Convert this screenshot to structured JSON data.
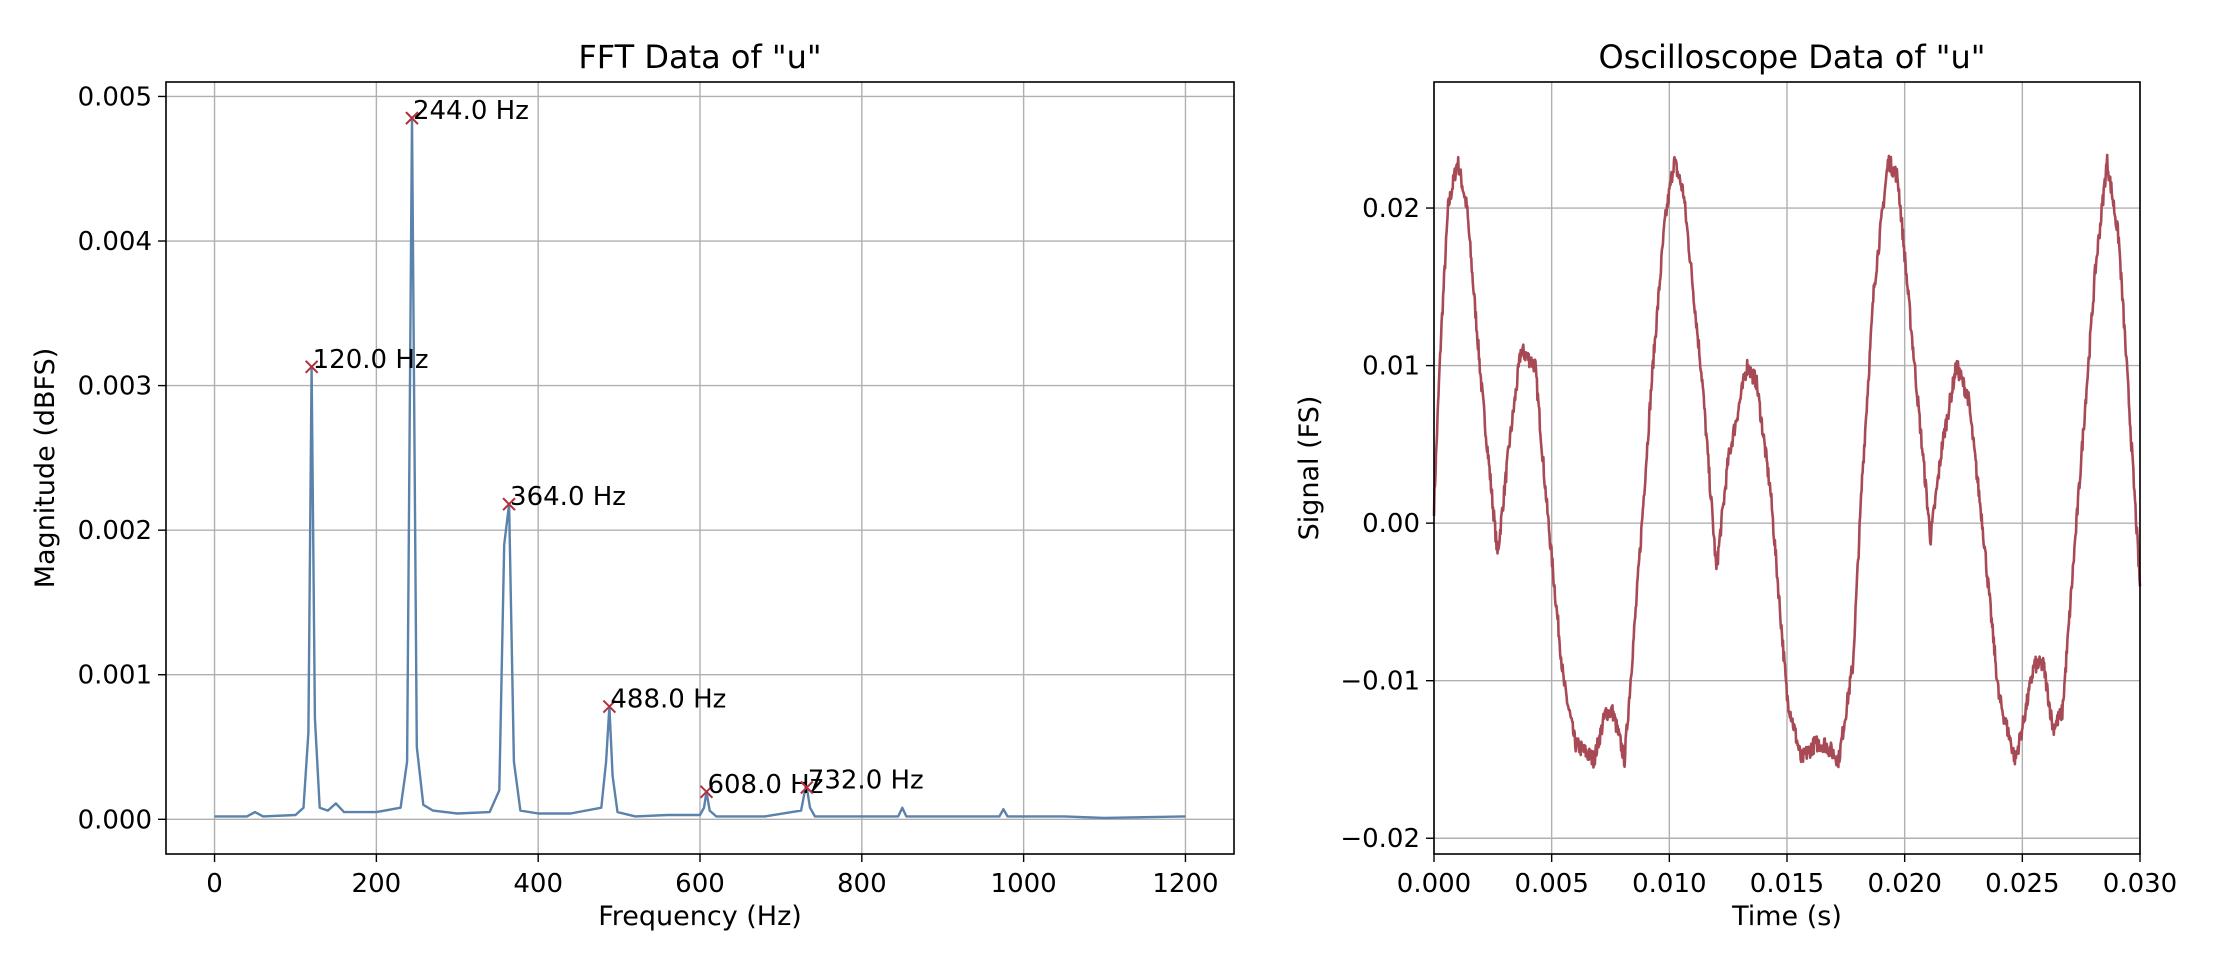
{
  "chart_data": [
    {
      "type": "line",
      "title": "FFT Data of \"u\"",
      "xlabel": "Frequency (Hz)",
      "ylabel": "Magnitude (dBFS)",
      "xlim": [
        -60,
        1260
      ],
      "ylim": [
        -0.00024,
        0.0051
      ],
      "xticks": [
        0,
        200,
        400,
        600,
        800,
        1000,
        1200
      ],
      "xtick_labels": [
        "0",
        "200",
        "400",
        "600",
        "800",
        "1000",
        "1200"
      ],
      "yticks": [
        0,
        0.001,
        0.002,
        0.003,
        0.004,
        0.005
      ],
      "ytick_labels": [
        "0.000",
        "0.001",
        "0.002",
        "0.003",
        "0.004",
        "0.005"
      ],
      "grid": true,
      "line_color": "#5a82ab",
      "marker_color": "#b03040",
      "series": [
        {
          "x": [
            0,
            40,
            50,
            60,
            100,
            110,
            116,
            120,
            124,
            130,
            140,
            150,
            160,
            200,
            230,
            238,
            244,
            250,
            258,
            270,
            300,
            340,
            352,
            358,
            364,
            370,
            378,
            400,
            440,
            478,
            484,
            488,
            492,
            498,
            520,
            560,
            600,
            605,
            608,
            612,
            620,
            680,
            725,
            729,
            732,
            736,
            742,
            800,
            845,
            850,
            855,
            900,
            970,
            975,
            980,
            1050,
            1100,
            1200
          ],
          "y": [
            2e-05,
            2e-05,
            5e-05,
            2e-05,
            3e-05,
            8e-05,
            0.0006,
            0.00313,
            0.0007,
            8e-05,
            6e-05,
            0.00011,
            5e-05,
            5e-05,
            8e-05,
            0.0004,
            0.00485,
            0.0005,
            0.0001,
            6e-05,
            4e-05,
            5e-05,
            0.0002,
            0.0019,
            0.00218,
            0.0004,
            6e-05,
            4e-05,
            4e-05,
            8e-05,
            0.0004,
            0.00078,
            0.0003,
            5e-05,
            2e-05,
            3e-05,
            3e-05,
            8e-05,
            0.00019,
            6e-05,
            2e-05,
            2e-05,
            6e-05,
            0.00018,
            0.00022,
            8e-05,
            2e-05,
            2e-05,
            2e-05,
            8e-05,
            2e-05,
            2e-05,
            2e-05,
            7e-05,
            2e-05,
            2e-05,
            1e-05,
            2e-05
          ]
        }
      ],
      "peaks": [
        {
          "x": 120,
          "y": 0.00313,
          "label": "120.0 Hz"
        },
        {
          "x": 244,
          "y": 0.00485,
          "label": "244.0 Hz"
        },
        {
          "x": 364,
          "y": 0.00218,
          "label": "364.0 Hz"
        },
        {
          "x": 488,
          "y": 0.00078,
          "label": "488.0 Hz"
        },
        {
          "x": 608,
          "y": 0.00019,
          "label": "608.0 Hz"
        },
        {
          "x": 732,
          "y": 0.00022,
          "label": "732.0 Hz"
        }
      ]
    },
    {
      "type": "line",
      "title": "Oscilloscope Data of \"u\"",
      "xlabel": "Time (s)",
      "ylabel": "Signal (FS)",
      "xlim": [
        0,
        0.03
      ],
      "ylim": [
        -0.021,
        0.028
      ],
      "xticks": [
        0,
        0.005,
        0.01,
        0.015,
        0.02,
        0.025,
        0.03
      ],
      "xtick_labels": [
        "0.000",
        "0.005",
        "0.010",
        "0.015",
        "0.020",
        "0.025",
        "0.030"
      ],
      "yticks": [
        -0.02,
        -0.01,
        0,
        0.01,
        0.02
      ],
      "ytick_labels": [
        "−0.02",
        "−0.01",
        "0.00",
        "0.01",
        "0.02"
      ],
      "grid": true,
      "line_color": "#a84a55",
      "series": [
        {
          "x": [
            0,
            0.0003,
            0.0006,
            0.001,
            0.0014,
            0.002,
            0.0027,
            0.0032,
            0.0037,
            0.0043,
            0.0048,
            0.0055,
            0.006,
            0.0068,
            0.0073,
            0.0076,
            0.0081,
            0.0086,
            0.0093,
            0.0098,
            0.0102,
            0.0106,
            0.0114,
            0.012,
            0.0125,
            0.0133,
            0.0137,
            0.0143,
            0.015,
            0.0156,
            0.0162,
            0.0166,
            0.0172,
            0.0178,
            0.0182,
            0.0187,
            0.0193,
            0.0197,
            0.0203,
            0.0211,
            0.0216,
            0.0222,
            0.0227,
            0.0233,
            0.024,
            0.0247,
            0.025,
            0.0255,
            0.0259,
            0.0263,
            0.0267,
            0.0273,
            0.0281,
            0.0286,
            0.0291,
            0.0296,
            0.03
          ],
          "y": [
            0.001,
            0.012,
            0.02,
            0.023,
            0.02,
            0.009,
            -0.002,
            0.005,
            0.011,
            0.01,
            0.001,
            -0.01,
            -0.014,
            -0.015,
            -0.012,
            -0.012,
            -0.015,
            -0.005,
            0.01,
            0.019,
            0.023,
            0.021,
            0.009,
            -0.003,
            0.004,
            0.01,
            0.009,
            0.002,
            -0.011,
            -0.015,
            -0.014,
            -0.014,
            -0.015,
            -0.009,
            0.003,
            0.015,
            0.023,
            0.022,
            0.012,
            -0.001,
            0.005,
            0.01,
            0.008,
            0.0,
            -0.011,
            -0.015,
            -0.013,
            -0.009,
            -0.009,
            -0.013,
            -0.012,
            0.0,
            0.016,
            0.023,
            0.018,
            0.006,
            -0.004
          ]
        }
      ]
    }
  ]
}
